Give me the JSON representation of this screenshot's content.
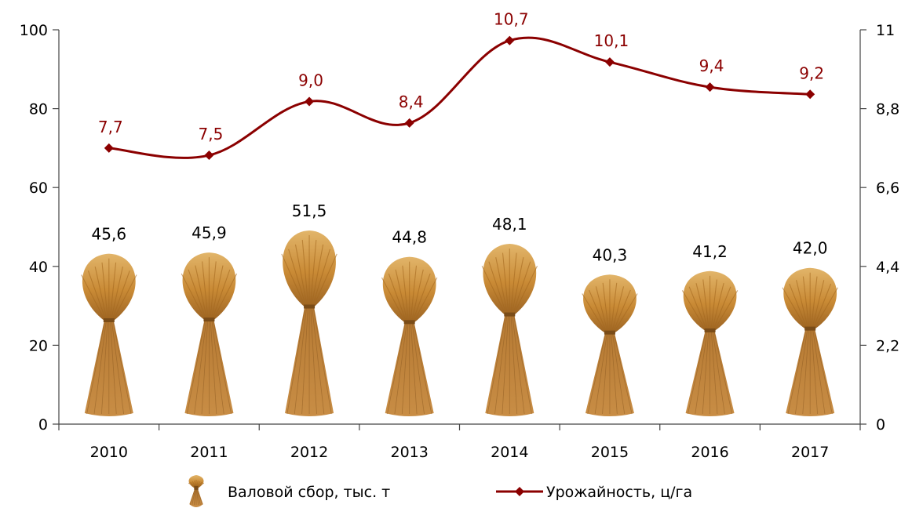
{
  "chart_data": {
    "type": "bar",
    "categories": [
      "2010",
      "2011",
      "2012",
      "2013",
      "2014",
      "2015",
      "2016",
      "2017"
    ],
    "series": [
      {
        "name": "Валовой сбор, тыс. т",
        "type": "bar",
        "axis": "left",
        "marker": "wheat-sheaf",
        "values": [
          45.6,
          45.9,
          51.5,
          44.8,
          48.1,
          40.3,
          41.2,
          42.0
        ],
        "labels": [
          "45,6",
          "45,9",
          "51,5",
          "44,8",
          "48,1",
          "40,3",
          "41,2",
          "42,0"
        ]
      },
      {
        "name": "Урожайность, ц/га",
        "type": "line",
        "axis": "right",
        "marker": "diamond",
        "values": [
          7.7,
          7.5,
          9.0,
          8.4,
          10.7,
          10.1,
          9.4,
          9.2
        ],
        "labels": [
          "7,7",
          "7,5",
          "9,0",
          "8,4",
          "10,7",
          "10,1",
          "9,4",
          "9,2"
        ]
      }
    ],
    "y_left": {
      "ylim": [
        0,
        100
      ],
      "ticks": [
        "0",
        "20",
        "40",
        "60",
        "80",
        "100"
      ],
      "tick_values": [
        0,
        20,
        40,
        60,
        80,
        100
      ]
    },
    "y_right": {
      "ylim": [
        0,
        11
      ],
      "ticks": [
        "0",
        "2,2",
        "4,4",
        "6,6",
        "8,8",
        "11"
      ],
      "tick_values": [
        0,
        2.2,
        4.4,
        6.6,
        8.8,
        11
      ]
    },
    "grid": false,
    "legend_position": "bottom-center",
    "colors": {
      "line": "#8b0000",
      "wheat": "#c8872f",
      "wheat_dark": "#8a5a1e",
      "axis": "#444444"
    }
  }
}
